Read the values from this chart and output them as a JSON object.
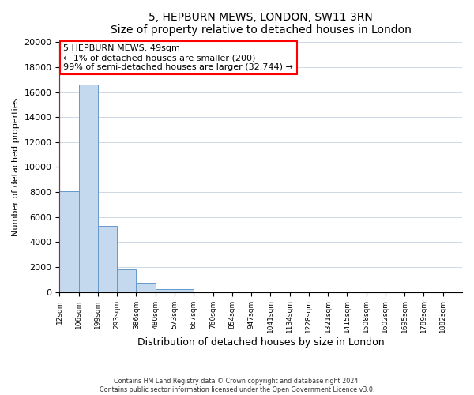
{
  "title": "5, HEPBURN MEWS, LONDON, SW11 3RN",
  "subtitle": "Size of property relative to detached houses in London",
  "xlabel": "Distribution of detached houses by size in London",
  "ylabel": "Number of detached properties",
  "bar_labels": [
    "12sqm",
    "106sqm",
    "199sqm",
    "293sqm",
    "386sqm",
    "480sqm",
    "573sqm",
    "667sqm",
    "760sqm",
    "854sqm",
    "947sqm",
    "1041sqm",
    "1134sqm",
    "1228sqm",
    "1321sqm",
    "1415sqm",
    "1508sqm",
    "1602sqm",
    "1695sqm",
    "1789sqm",
    "1882sqm"
  ],
  "bar_values": [
    8100,
    16600,
    5300,
    1800,
    750,
    250,
    200,
    0,
    0,
    0,
    0,
    0,
    0,
    0,
    0,
    0,
    0,
    0,
    0,
    0,
    0
  ],
  "bar_color": "#c5d9ee",
  "bar_edge_color": "#6699cc",
  "ylim": [
    0,
    20000
  ],
  "yticks": [
    0,
    2000,
    4000,
    6000,
    8000,
    10000,
    12000,
    14000,
    16000,
    18000,
    20000
  ],
  "annotation_title": "5 HEPBURN MEWS: 49sqm",
  "annotation_line1": "← 1% of detached houses are smaller (200)",
  "annotation_line2": "99% of semi-detached houses are larger (32,744) →",
  "footer_line1": "Contains HM Land Registry data © Crown copyright and database right 2024.",
  "footer_line2": "Contains public sector information licensed under the Open Government Licence v3.0.",
  "background_color": "#ffffff",
  "grid_color": "#d0d8e4"
}
